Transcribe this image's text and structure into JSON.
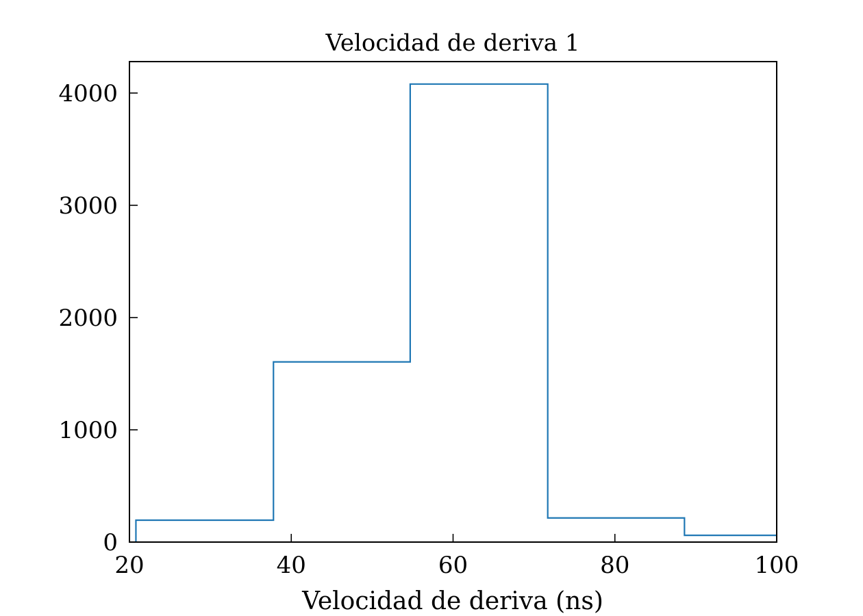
{
  "chart_data": {
    "type": "histogram-step",
    "title": "Velocidad de deriva 1",
    "xlabel": "Velocidad de deriva (ns)",
    "ylabel": "",
    "xlim": [
      20,
      100
    ],
    "ylim": [
      0,
      4280
    ],
    "grid": false,
    "xticks": [
      20,
      40,
      60,
      80,
      100
    ],
    "yticks": [
      0,
      1000,
      2000,
      3000,
      4000
    ],
    "bin_edges": [
      20.8,
      37.8,
      54.7,
      71.7,
      88.6,
      105.6
    ],
    "counts": [
      195,
      1605,
      4080,
      215,
      60
    ],
    "line_color": "#1f77b4"
  }
}
